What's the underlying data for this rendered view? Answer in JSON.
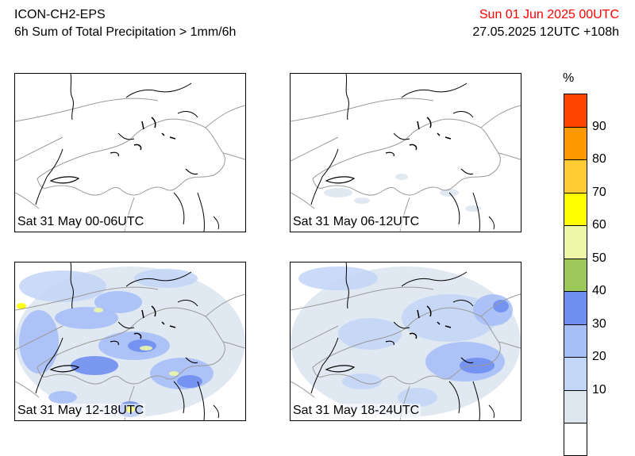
{
  "header": {
    "model": "ICON-CH2-EPS",
    "product": "6h Sum of Total Precipitation > 1mm/6h",
    "valid_time": "Sun 01 Jun 2025 00UTC",
    "run_info": "27.05.2025 12UTC +108h"
  },
  "panels": [
    {
      "label": "Sat 31 May 00-06UTC"
    },
    {
      "label": "Sat 31 May 06-12UTC"
    },
    {
      "label": "Sat 31 May 12-18UTC"
    },
    {
      "label": "Sat 31 May 18-24UTC"
    }
  ],
  "colorbar": {
    "unit": "%",
    "ticks": [
      "90",
      "80",
      "70",
      "60",
      "50",
      "40",
      "30",
      "20",
      "10"
    ],
    "colors": [
      "#ff4500",
      "#ff9900",
      "#ffcc33",
      "#ffff00",
      "#eef7a8",
      "#9dc85a",
      "#6f8ff0",
      "#a7bff7",
      "#c4d6f7",
      "#dde6ef",
      "#ffffff"
    ]
  }
}
